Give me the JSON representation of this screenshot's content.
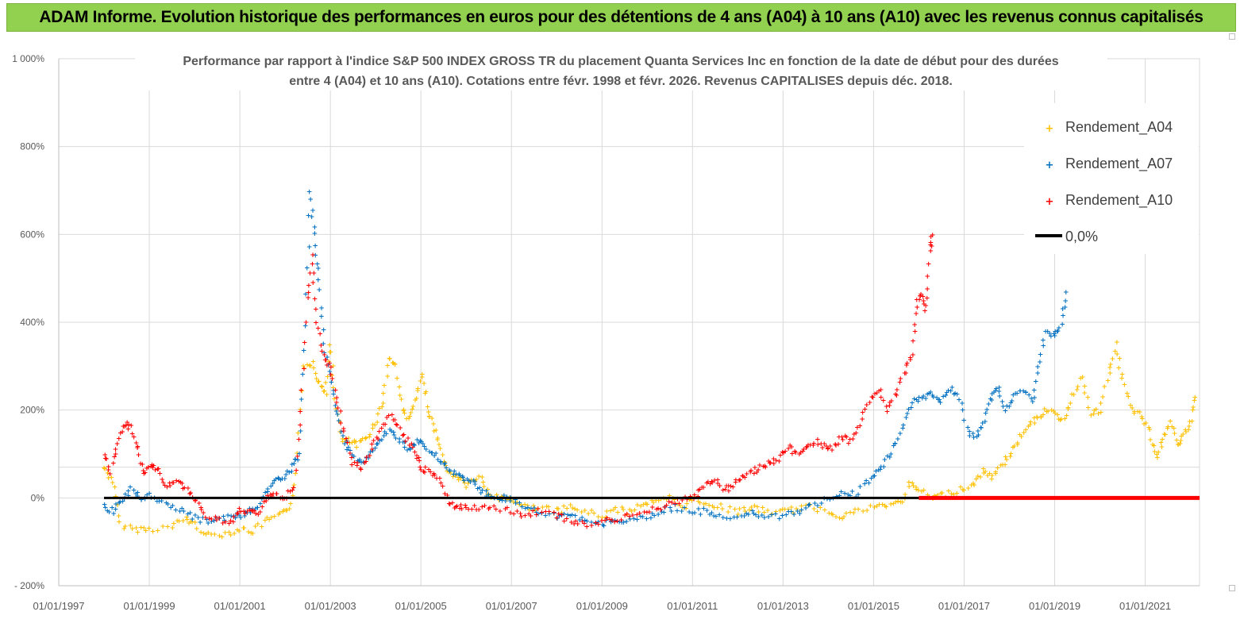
{
  "header": {
    "banner_title": "ADAM Informe. Evolution historique des performances en euros pour des détentions de 4 ans (A04) à 10 ans (A10) avec les revenus connus capitalisés"
  },
  "colors": {
    "banner_bg": "#92d050",
    "a04": "#ffc000",
    "a07": "#0070c0",
    "a10": "#ff0000",
    "zero": "#000000",
    "grid": "#d9d9d9"
  },
  "chart_data": {
    "type": "scatter",
    "title_line1": "Performance par rapport à l'indice S&P 500 INDEX GROSS TR  du placement Quanta Services Inc en fonction de la date de début pour des durées",
    "title_line2": "entre 4 (A04) et 10 ans (A10). Cotations entre févr. 1998 et févr. 2026. Revenus CAPITALISES depuis déc. 2018.",
    "xlabel": "",
    "ylabel": "",
    "x_ticks": [
      "01/01/1997",
      "01/01/1999",
      "01/01/2001",
      "01/01/2003",
      "01/01/2005",
      "01/01/2007",
      "01/01/2009",
      "01/01/2011",
      "01/01/2013",
      "01/01/2015",
      "01/01/2017",
      "01/01/2019",
      "01/01/2021"
    ],
    "xlim": [
      1997.0,
      2022.2
    ],
    "y_ticks": [
      "- 200%",
      "0%",
      "200%",
      "400%",
      "600%",
      "800%",
      "1 000%"
    ],
    "ylim": [
      -200,
      1000
    ],
    "legend": {
      "position": "top-right",
      "entries": [
        "Rendement_A04",
        "Rendement_A07",
        "Rendement_A10",
        "0,0%"
      ]
    },
    "series": [
      {
        "name": "Rendement_A04",
        "color": "#ffc000",
        "points": [
          [
            1998.0,
            70
          ],
          [
            1998.2,
            40
          ],
          [
            1998.35,
            -60
          ],
          [
            1998.7,
            -70
          ],
          [
            1999.0,
            -70
          ],
          [
            1999.5,
            -65
          ],
          [
            1999.8,
            -45
          ],
          [
            2000.0,
            -60
          ],
          [
            2000.3,
            -85
          ],
          [
            2000.7,
            -80
          ],
          [
            2001.0,
            -70
          ],
          [
            2001.3,
            -75
          ],
          [
            2001.6,
            -50
          ],
          [
            2001.9,
            -40
          ],
          [
            2002.1,
            -20
          ],
          [
            2002.25,
            50
          ],
          [
            2002.4,
            300
          ],
          [
            2002.6,
            310
          ],
          [
            2002.75,
            260
          ],
          [
            2002.9,
            240
          ],
          [
            2003.0,
            350
          ],
          [
            2003.1,
            230
          ],
          [
            2003.25,
            130
          ],
          [
            2003.45,
            130
          ],
          [
            2003.6,
            120
          ],
          [
            2003.8,
            140
          ],
          [
            2004.0,
            170
          ],
          [
            2004.15,
            220
          ],
          [
            2004.3,
            320
          ],
          [
            2004.45,
            300
          ],
          [
            2004.6,
            200
          ],
          [
            2004.75,
            180
          ],
          [
            2004.9,
            230
          ],
          [
            2005.05,
            280
          ],
          [
            2005.15,
            200
          ],
          [
            2005.3,
            160
          ],
          [
            2005.45,
            110
          ],
          [
            2005.6,
            60
          ],
          [
            2005.8,
            50
          ],
          [
            2006.0,
            30
          ],
          [
            2006.3,
            50
          ],
          [
            2006.5,
            10
          ],
          [
            2006.7,
            0
          ],
          [
            2007.0,
            0
          ],
          [
            2007.3,
            -20
          ],
          [
            2007.6,
            -20
          ],
          [
            2008.0,
            -30
          ],
          [
            2008.3,
            -20
          ],
          [
            2008.6,
            -30
          ],
          [
            2009.0,
            -40
          ],
          [
            2009.3,
            -25
          ],
          [
            2009.6,
            -30
          ],
          [
            2009.9,
            -10
          ],
          [
            2010.2,
            -10
          ],
          [
            2010.5,
            0
          ],
          [
            2010.8,
            -20
          ],
          [
            2011.0,
            0
          ],
          [
            2011.3,
            -10
          ],
          [
            2011.6,
            -20
          ],
          [
            2012.0,
            -30
          ],
          [
            2012.3,
            -20
          ],
          [
            2012.6,
            -30
          ],
          [
            2013.0,
            -30
          ],
          [
            2013.3,
            -25
          ],
          [
            2013.6,
            -20
          ],
          [
            2014.0,
            -30
          ],
          [
            2014.3,
            -40
          ],
          [
            2014.6,
            -30
          ],
          [
            2015.0,
            -20
          ],
          [
            2015.3,
            -15
          ],
          [
            2015.6,
            -10
          ],
          [
            2015.8,
            30
          ],
          [
            2016.0,
            20
          ],
          [
            2016.3,
            0
          ],
          [
            2016.6,
            10
          ],
          [
            2016.9,
            20
          ],
          [
            2017.2,
            30
          ],
          [
            2017.4,
            60
          ],
          [
            2017.6,
            50
          ],
          [
            2017.8,
            70
          ],
          [
            2018.0,
            100
          ],
          [
            2018.2,
            130
          ],
          [
            2018.4,
            170
          ],
          [
            2018.6,
            180
          ],
          [
            2018.8,
            200
          ],
          [
            2019.0,
            190
          ],
          [
            2019.2,
            180
          ],
          [
            2019.4,
            230
          ],
          [
            2019.6,
            280
          ],
          [
            2019.8,
            190
          ],
          [
            2020.0,
            200
          ],
          [
            2020.2,
            280
          ],
          [
            2020.35,
            350
          ],
          [
            2020.5,
            270
          ],
          [
            2020.7,
            200
          ],
          [
            2020.9,
            190
          ],
          [
            2021.1,
            150
          ],
          [
            2021.25,
            90
          ],
          [
            2021.4,
            130
          ],
          [
            2021.55,
            180
          ],
          [
            2021.7,
            120
          ],
          [
            2021.85,
            140
          ],
          [
            2022.0,
            170
          ],
          [
            2022.1,
            230
          ]
        ]
      },
      {
        "name": "Rendement_A07",
        "color": "#0070c0",
        "points": [
          [
            1998.0,
            -20
          ],
          [
            1998.2,
            -30
          ],
          [
            1998.4,
            0
          ],
          [
            1998.6,
            20
          ],
          [
            1998.8,
            0
          ],
          [
            1999.0,
            10
          ],
          [
            1999.3,
            -10
          ],
          [
            1999.6,
            -20
          ],
          [
            1999.9,
            -40
          ],
          [
            2000.2,
            -50
          ],
          [
            2000.5,
            -50
          ],
          [
            2000.8,
            -40
          ],
          [
            2001.0,
            -40
          ],
          [
            2001.2,
            -30
          ],
          [
            2001.4,
            -20
          ],
          [
            2001.6,
            20
          ],
          [
            2001.8,
            40
          ],
          [
            2002.0,
            50
          ],
          [
            2002.15,
            70
          ],
          [
            2002.3,
            100
          ],
          [
            2002.45,
            400
          ],
          [
            2002.55,
            700
          ],
          [
            2002.65,
            600
          ],
          [
            2002.75,
            500
          ],
          [
            2002.85,
            350
          ],
          [
            2003.0,
            280
          ],
          [
            2003.15,
            200
          ],
          [
            2003.3,
            130
          ],
          [
            2003.5,
            100
          ],
          [
            2003.7,
            80
          ],
          [
            2003.9,
            110
          ],
          [
            2004.1,
            130
          ],
          [
            2004.3,
            160
          ],
          [
            2004.5,
            140
          ],
          [
            2004.7,
            110
          ],
          [
            2004.9,
            130
          ],
          [
            2005.1,
            120
          ],
          [
            2005.3,
            100
          ],
          [
            2005.5,
            80
          ],
          [
            2005.7,
            60
          ],
          [
            2005.9,
            50
          ],
          [
            2006.1,
            40
          ],
          [
            2006.3,
            20
          ],
          [
            2006.5,
            10
          ],
          [
            2006.8,
            0
          ],
          [
            2007.0,
            0
          ],
          [
            2007.3,
            -20
          ],
          [
            2007.6,
            -30
          ],
          [
            2008.0,
            -40
          ],
          [
            2008.3,
            -40
          ],
          [
            2008.6,
            -50
          ],
          [
            2009.0,
            -60
          ],
          [
            2009.3,
            -50
          ],
          [
            2009.6,
            -50
          ],
          [
            2010.0,
            -40
          ],
          [
            2010.3,
            -30
          ],
          [
            2010.6,
            -20
          ],
          [
            2011.0,
            -30
          ],
          [
            2011.3,
            -30
          ],
          [
            2011.6,
            -40
          ],
          [
            2012.0,
            -40
          ],
          [
            2012.3,
            -30
          ],
          [
            2012.6,
            -40
          ],
          [
            2013.0,
            -40
          ],
          [
            2013.3,
            -30
          ],
          [
            2013.6,
            -20
          ],
          [
            2014.0,
            0
          ],
          [
            2014.3,
            10
          ],
          [
            2014.6,
            10
          ],
          [
            2014.9,
            40
          ],
          [
            2015.1,
            60
          ],
          [
            2015.3,
            90
          ],
          [
            2015.5,
            130
          ],
          [
            2015.7,
            180
          ],
          [
            2015.9,
            220
          ],
          [
            2016.1,
            230
          ],
          [
            2016.3,
            240
          ],
          [
            2016.5,
            220
          ],
          [
            2016.7,
            250
          ],
          [
            2016.9,
            230
          ],
          [
            2017.1,
            150
          ],
          [
            2017.3,
            140
          ],
          [
            2017.45,
            180
          ],
          [
            2017.6,
            230
          ],
          [
            2017.75,
            260
          ],
          [
            2017.9,
            200
          ],
          [
            2018.1,
            230
          ],
          [
            2018.3,
            250
          ],
          [
            2018.5,
            220
          ],
          [
            2018.65,
            300
          ],
          [
            2018.8,
            380
          ],
          [
            2019.0,
            370
          ],
          [
            2019.15,
            400
          ],
          [
            2019.25,
            470
          ]
        ]
      },
      {
        "name": "Rendement_A10",
        "color": "#ff0000",
        "points": [
          [
            1998.0,
            100
          ],
          [
            1998.15,
            60
          ],
          [
            1998.3,
            130
          ],
          [
            1998.45,
            170
          ],
          [
            1998.6,
            160
          ],
          [
            1998.75,
            110
          ],
          [
            1998.9,
            50
          ],
          [
            1999.05,
            80
          ],
          [
            1999.2,
            60
          ],
          [
            1999.4,
            30
          ],
          [
            1999.6,
            40
          ],
          [
            1999.8,
            20
          ],
          [
            2000.0,
            0
          ],
          [
            2000.2,
            -40
          ],
          [
            2000.5,
            -50
          ],
          [
            2000.8,
            -50
          ],
          [
            2001.0,
            -30
          ],
          [
            2001.2,
            -30
          ],
          [
            2001.4,
            -30
          ],
          [
            2001.6,
            0
          ],
          [
            2001.8,
            10
          ],
          [
            2002.0,
            0
          ],
          [
            2002.2,
            30
          ],
          [
            2002.35,
            200
          ],
          [
            2002.5,
            450
          ],
          [
            2002.6,
            550
          ],
          [
            2002.7,
            400
          ],
          [
            2002.85,
            320
          ],
          [
            2003.0,
            300
          ],
          [
            2003.15,
            220
          ],
          [
            2003.3,
            150
          ],
          [
            2003.5,
            80
          ],
          [
            2003.7,
            70
          ],
          [
            2003.9,
            110
          ],
          [
            2004.1,
            150
          ],
          [
            2004.3,
            190
          ],
          [
            2004.5,
            160
          ],
          [
            2004.7,
            130
          ],
          [
            2004.9,
            100
          ],
          [
            2005.0,
            70
          ],
          [
            2005.2,
            60
          ],
          [
            2005.4,
            50
          ],
          [
            2005.6,
            -10
          ],
          [
            2005.8,
            -20
          ],
          [
            2006.0,
            -20
          ],
          [
            2006.3,
            -20
          ],
          [
            2006.6,
            -20
          ],
          [
            2007.0,
            -30
          ],
          [
            2007.3,
            -40
          ],
          [
            2007.6,
            -30
          ],
          [
            2008.0,
            -40
          ],
          [
            2008.3,
            -50
          ],
          [
            2008.6,
            -60
          ],
          [
            2009.0,
            -50
          ],
          [
            2009.3,
            -50
          ],
          [
            2009.6,
            -40
          ],
          [
            2010.0,
            -30
          ],
          [
            2010.3,
            -20
          ],
          [
            2010.6,
            -10
          ],
          [
            2010.9,
            0
          ],
          [
            2011.1,
            10
          ],
          [
            2011.3,
            30
          ],
          [
            2011.5,
            40
          ],
          [
            2011.7,
            20
          ],
          [
            2011.9,
            30
          ],
          [
            2012.1,
            50
          ],
          [
            2012.3,
            60
          ],
          [
            2012.5,
            70
          ],
          [
            2012.7,
            80
          ],
          [
            2012.9,
            90
          ],
          [
            2013.1,
            120
          ],
          [
            2013.3,
            100
          ],
          [
            2013.5,
            110
          ],
          [
            2013.7,
            130
          ],
          [
            2013.9,
            120
          ],
          [
            2014.1,
            110
          ],
          [
            2014.3,
            140
          ],
          [
            2014.5,
            130
          ],
          [
            2014.7,
            170
          ],
          [
            2014.9,
            220
          ],
          [
            2015.1,
            250
          ],
          [
            2015.3,
            200
          ],
          [
            2015.5,
            240
          ],
          [
            2015.7,
            290
          ],
          [
            2015.85,
            330
          ],
          [
            2015.95,
            440
          ],
          [
            2016.05,
            470
          ],
          [
            2016.15,
            430
          ],
          [
            2016.25,
            560
          ],
          [
            2016.3,
            600
          ]
        ]
      }
    ],
    "zero_line": {
      "name": "0,0%",
      "black_x": [
        1998.0,
        2016.0
      ],
      "red_x": [
        2016.0,
        2022.2
      ],
      "value": 0
    }
  }
}
